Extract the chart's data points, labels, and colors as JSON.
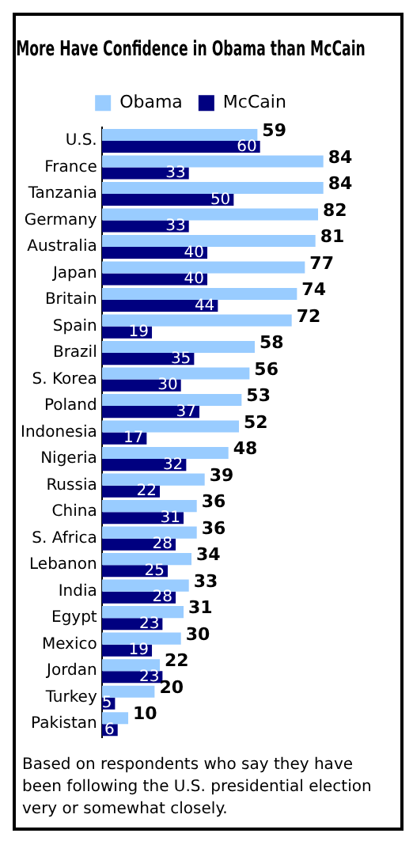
{
  "chart_data": {
    "type": "bar",
    "orientation": "horizontal",
    "title": "More Have Confidence in Obama than McCain",
    "categories": [
      "U.S.",
      "France",
      "Tanzania",
      "Germany",
      "Australia",
      "Japan",
      "Britain",
      "Spain",
      "Brazil",
      "S. Korea",
      "Poland",
      "Indonesia",
      "Nigeria",
      "Russia",
      "China",
      "S. Africa",
      "Lebanon",
      "India",
      "Egypt",
      "Mexico",
      "Jordan",
      "Turkey",
      "Pakistan"
    ],
    "series": [
      {
        "name": "Obama",
        "color": "#99ccff",
        "values": [
          59,
          84,
          84,
          82,
          81,
          77,
          74,
          72,
          58,
          56,
          53,
          52,
          48,
          39,
          36,
          36,
          34,
          33,
          31,
          30,
          22,
          20,
          10
        ]
      },
      {
        "name": "McCain",
        "color": "#000080",
        "values": [
          60,
          33,
          50,
          33,
          40,
          40,
          44,
          19,
          35,
          30,
          37,
          17,
          32,
          22,
          31,
          28,
          25,
          28,
          23,
          19,
          23,
          5,
          6
        ]
      }
    ],
    "data_labels": true,
    "legend": "top",
    "grid": false,
    "annotations": [
      "Based on respondents who say they have been following the U.S. presidential election very or somewhat closely."
    ]
  }
}
